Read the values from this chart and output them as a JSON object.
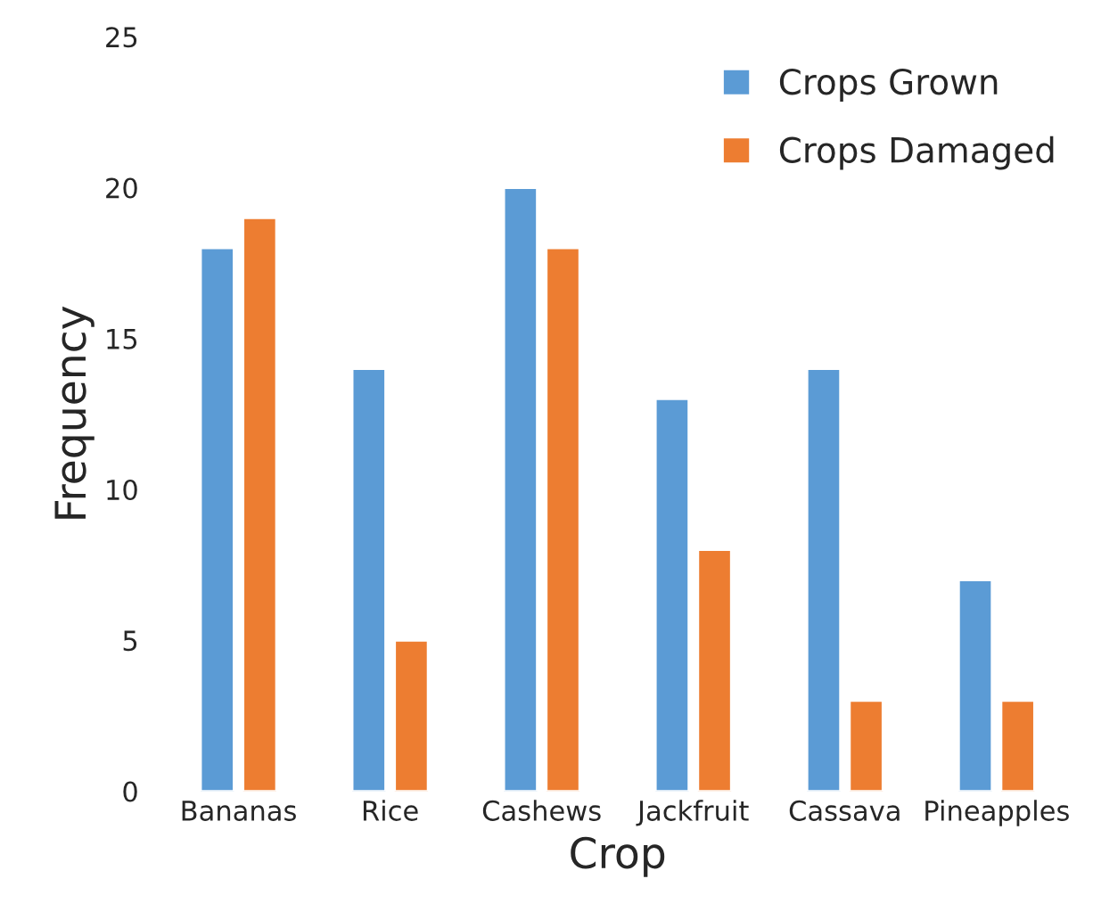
{
  "chart_data": {
    "type": "bar",
    "xlabel": "Crop",
    "ylabel": "Frequency",
    "categories": [
      "Bananas",
      "Rice",
      "Cashews",
      "Jackfruit",
      "Cassava",
      "Pineapples"
    ],
    "series": [
      {
        "name": "Crops Grown",
        "color": "#5b9bd5",
        "values": [
          18,
          14,
          20,
          13,
          14,
          7
        ]
      },
      {
        "name": "Crops Damaged",
        "color": "#ed7d31",
        "values": [
          19,
          5,
          18,
          8,
          3,
          3
        ]
      }
    ],
    "ylim": [
      0,
      25
    ],
    "yticks": [
      0,
      5,
      10,
      15,
      20,
      25
    ],
    "grid": false,
    "legend": "top right"
  }
}
